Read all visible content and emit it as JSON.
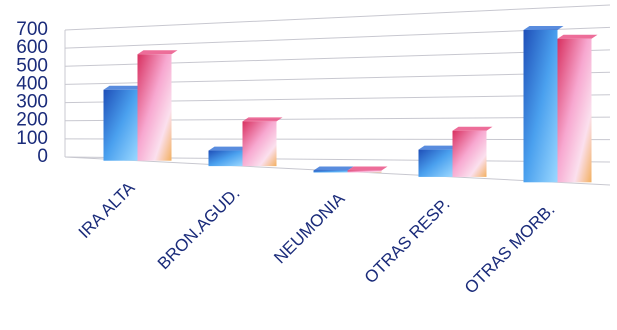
{
  "chart_data": {
    "type": "bar",
    "categories": [
      "IRA  ALTA",
      "BRON.AGUD.",
      "NEUMONIA",
      "OTRAS RESP.",
      "OTRAS MORB."
    ],
    "series": [
      {
        "color": "#2f6fd6",
        "values": [
          380,
          80,
          5,
          130,
          700
        ]
      },
      {
        "color": "#e8487f",
        "values": [
          570,
          230,
          5,
          220,
          660
        ]
      }
    ],
    "ylim": [
      0,
      700
    ],
    "yticks": [
      0,
      100,
      200,
      300,
      400,
      500,
      600,
      700
    ],
    "grid": true
  }
}
